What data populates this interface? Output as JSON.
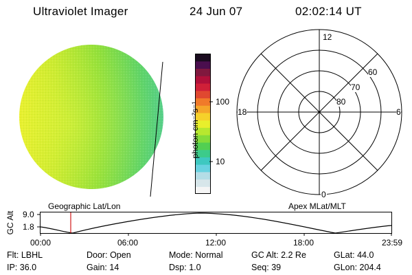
{
  "header": {
    "instrument": "Ultraviolet Imager",
    "date": "24 Jun 07",
    "time": "02:02:14 UT"
  },
  "colorbar": {
    "label": "photon cm⁻²s⁻¹",
    "ticks": [
      "100",
      "10"
    ],
    "scale": "log",
    "colors": [
      "#f5f5f5",
      "#d7e6ea",
      "#b4dde6",
      "#69d2e0",
      "#3ec8c0",
      "#3ccb8a",
      "#52cf52",
      "#84dc3a",
      "#b7e82f",
      "#e8ef2c",
      "#f6d12a",
      "#f5a62a",
      "#f07a2a",
      "#e04830",
      "#d02038",
      "#b0103a",
      "#80183e",
      "#4a0e4e",
      "#1a0b1f"
    ]
  },
  "polar": {
    "labels": {
      "top": "12",
      "left": "18",
      "right": "6",
      "bottom": "0"
    },
    "rings": [
      "60",
      "70",
      "80"
    ]
  },
  "map_labels": {
    "left": "Geographic Lat/Lon",
    "right": "Apex MLat/MLT"
  },
  "alt_plot": {
    "ylabel": "GC Alt",
    "y_ticks": [
      "9.0",
      "1.8"
    ],
    "x_ticks": [
      "00:00",
      "06:00",
      "12:00",
      "18:00",
      "23:59"
    ],
    "cursor_time": "02:02:14"
  },
  "info": {
    "row1": [
      {
        "name": "Flt:",
        "value": "LBHL"
      },
      {
        "name": "Door:",
        "value": "Open"
      },
      {
        "name": "Mode:",
        "value": "Normal"
      },
      {
        "name": "GC Alt:",
        "value": "2.2 Re"
      },
      {
        "name": "GLat:",
        "value": "44.0"
      }
    ],
    "row2": [
      {
        "name": "IP:",
        "value": "36.0"
      },
      {
        "name": "Gain:",
        "value": "14"
      },
      {
        "name": "Dsp:",
        "value": "1.0"
      },
      {
        "name": "Seq:",
        "value": "39"
      },
      {
        "name": "GLon:",
        "value": "204.4"
      }
    ]
  }
}
